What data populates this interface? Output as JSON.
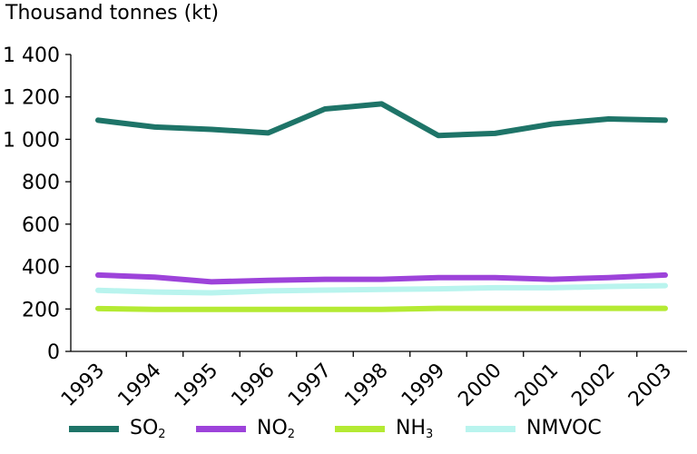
{
  "chart_data": {
    "type": "line",
    "ylabel": "Thousand tonnes (kt)",
    "x": [
      "1993",
      "1994",
      "1995",
      "1996",
      "1997",
      "1998",
      "1999",
      "2000",
      "2001",
      "2002",
      "2003"
    ],
    "ylim": [
      0,
      1400
    ],
    "yticks": [
      0,
      200,
      400,
      600,
      800,
      1000,
      1200,
      1400
    ],
    "ytick_labels": [
      "0",
      "200",
      "400",
      "600",
      "800",
      "1 000",
      "1 200",
      "1 400"
    ],
    "grid": false,
    "legend_position": "bottom",
    "series": [
      {
        "name": "SO",
        "subscript": "2",
        "color": "#1e7468",
        "values": [
          1090,
          1058,
          1047,
          1030,
          1143,
          1167,
          1018,
          1028,
          1072,
          1096,
          1090
        ]
      },
      {
        "name": "NO",
        "subscript": "2",
        "color": "#9d43da",
        "values": [
          360,
          350,
          328,
          335,
          340,
          340,
          348,
          348,
          340,
          348,
          360
        ]
      },
      {
        "name": "NH",
        "subscript": "3",
        "color": "#b4ea33",
        "values": [
          202,
          198,
          198,
          198,
          198,
          198,
          203,
          203,
          203,
          203,
          203
        ]
      },
      {
        "name": "NMVOC",
        "subscript": "",
        "color": "#b9f4ee",
        "values": [
          288,
          280,
          276,
          285,
          289,
          292,
          295,
          300,
          300,
          306,
          310
        ]
      }
    ]
  }
}
